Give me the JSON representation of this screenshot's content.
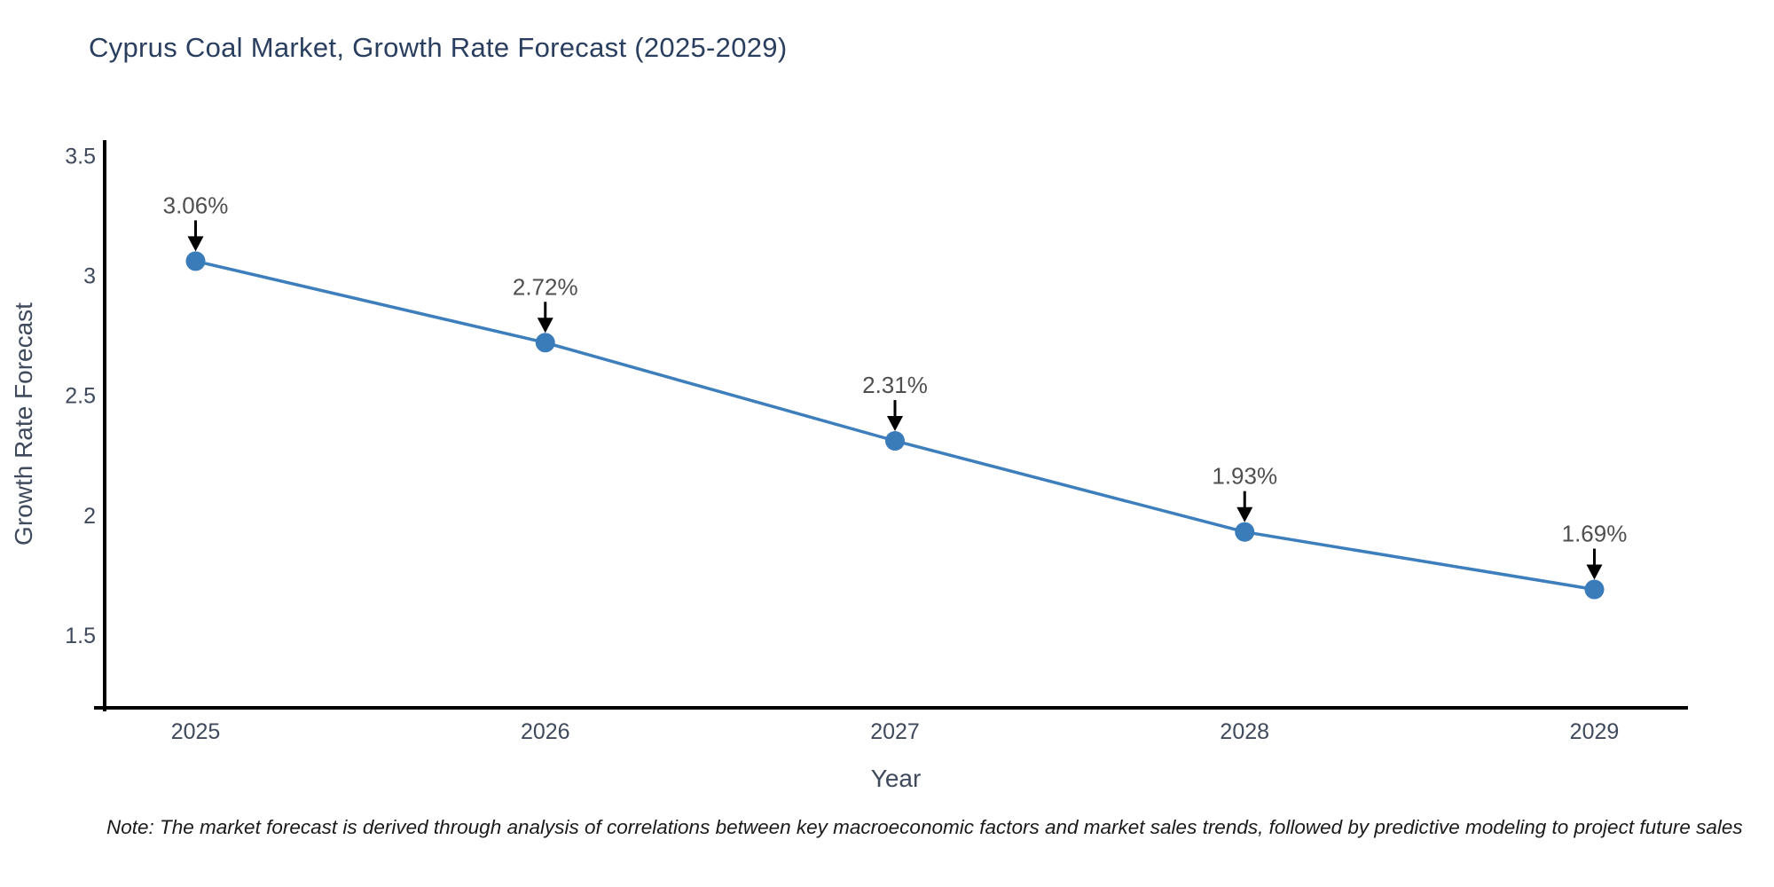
{
  "page": {
    "note": "Note: The market forecast is derived through analysis of correlations between key macroeconomic factors and market sales trends, followed by predictive modeling to project future sales",
    "colors": {
      "title": "#2a3f5f",
      "axis_spine": "#000000",
      "tick_label": "#3f4a5c",
      "axis_title": "#3f4a5c",
      "annotation_text": "#4f4f4f",
      "arrow": "#000000",
      "line": "#3d7ebd",
      "marker": "#3a7bba",
      "background": "#ffffff"
    }
  },
  "chart_data": {
    "type": "line",
    "title": "Cyprus Coal Market, Growth Rate Forecast (2025-2029)",
    "xlabel": "Year",
    "ylabel": "Growth Rate Forecast",
    "x": [
      2025,
      2026,
      2027,
      2028,
      2029
    ],
    "values": [
      3.06,
      2.72,
      2.31,
      1.93,
      1.69
    ],
    "point_labels": [
      "3.06%",
      "2.72%",
      "2.31%",
      "1.93%",
      "1.69%"
    ],
    "xtick_labels": [
      "2025",
      "2026",
      "2027",
      "2028",
      "2029"
    ],
    "ytick_values": [
      1.5,
      2,
      2.5,
      3,
      3.5
    ],
    "ytick_labels": [
      "1.5",
      "2",
      "2.5",
      "3",
      "3.5"
    ],
    "xlim": [
      2024.74,
      2029.26
    ],
    "ylim": [
      1.196,
      3.565
    ],
    "grid": false,
    "legend": null,
    "annotation_arrows": true,
    "marker_size": 11,
    "line_width": 3.5
  }
}
